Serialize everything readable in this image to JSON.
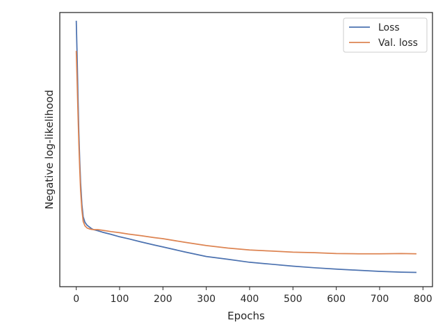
{
  "chart_data": {
    "type": "line",
    "title": "",
    "xlabel": "Epochs",
    "ylabel": "Negative log-likelihood",
    "xlim": [
      -38,
      822
    ],
    "ylim": [
      0.0,
      1.0
    ],
    "yticks_labeled": false,
    "xticks": [
      0,
      100,
      200,
      300,
      400,
      500,
      600,
      700,
      800
    ],
    "legend": {
      "placement": "top-right",
      "frame": true
    },
    "grid": false,
    "series": [
      {
        "name": "Loss",
        "color": "#4c72b0",
        "x": [
          0,
          2,
          4,
          6,
          8,
          10,
          13,
          16,
          20,
          25,
          30,
          35,
          40,
          50,
          60,
          80,
          100,
          120,
          150,
          180,
          200,
          250,
          300,
          350,
          400,
          450,
          500,
          550,
          600,
          650,
          700,
          750,
          785
        ],
        "y": [
          0.97,
          0.84,
          0.69,
          0.56,
          0.46,
          0.38,
          0.3,
          0.255,
          0.235,
          0.224,
          0.218,
          0.212,
          0.208,
          0.204,
          0.199,
          0.191,
          0.182,
          0.175,
          0.163,
          0.152,
          0.145,
          0.127,
          0.11,
          0.1,
          0.089,
          0.082,
          0.075,
          0.069,
          0.064,
          0.06,
          0.056,
          0.053,
          0.052
        ]
      },
      {
        "name": "Val. loss",
        "color": "#dd8452",
        "x": [
          0,
          2,
          4,
          6,
          8,
          10,
          13,
          16,
          20,
          25,
          30,
          35,
          40,
          50,
          60,
          80,
          100,
          120,
          150,
          180,
          200,
          250,
          300,
          350,
          400,
          450,
          500,
          550,
          600,
          650,
          700,
          750,
          785
        ],
        "y": [
          0.86,
          0.75,
          0.63,
          0.52,
          0.43,
          0.35,
          0.28,
          0.238,
          0.222,
          0.214,
          0.211,
          0.209,
          0.208,
          0.208,
          0.206,
          0.201,
          0.197,
          0.192,
          0.186,
          0.179,
          0.175,
          0.162,
          0.15,
          0.141,
          0.134,
          0.13,
          0.126,
          0.124,
          0.121,
          0.12,
          0.12,
          0.121,
          0.12
        ]
      }
    ]
  }
}
